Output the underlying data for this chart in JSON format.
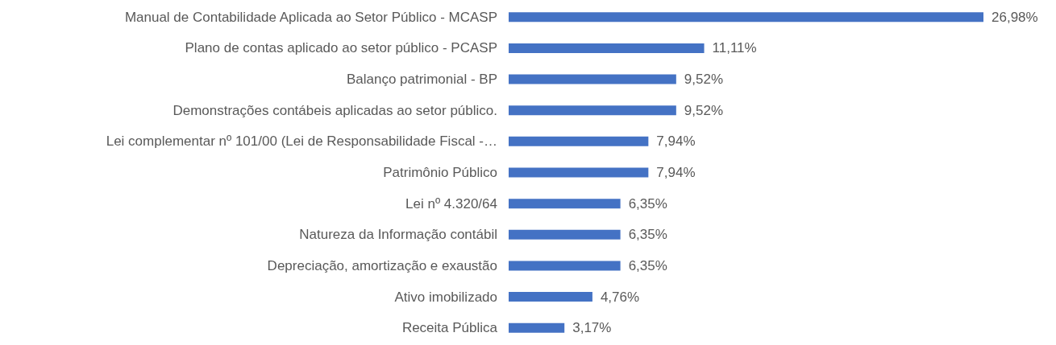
{
  "chart_data": {
    "type": "bar",
    "orientation": "horizontal",
    "categories": [
      "Manual de Contabilidade Aplicada ao Setor Público - MCASP",
      "Plano de contas aplicado ao setor público - PCASP",
      "Balanço patrimonial - BP",
      "Demonstrações contábeis aplicadas ao setor público.",
      "Lei complementar nº 101/00 (Lei de Responsabilidade Fiscal -…",
      "Patrimônio Público",
      "Lei nº 4.320/64",
      "Natureza da Informação contábil",
      "Depreciação, amortização e exaustão",
      "Ativo imobilizado",
      "Receita Pública"
    ],
    "values": [
      26.98,
      11.11,
      9.52,
      9.52,
      7.94,
      7.94,
      6.35,
      6.35,
      6.35,
      4.76,
      3.17
    ],
    "value_labels": [
      "26,98%",
      "11,11%",
      "9,52%",
      "9,52%",
      "7,94%",
      "7,94%",
      "6,35%",
      "6,35%",
      "6,35%",
      "4,76%",
      "3,17%"
    ],
    "color": "#4472c4"
  }
}
